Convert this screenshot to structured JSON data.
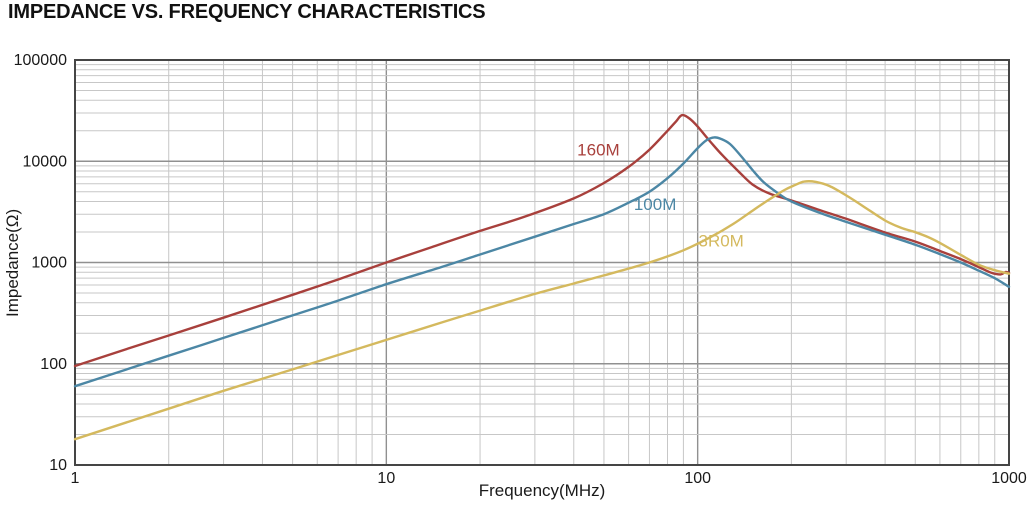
{
  "page": {
    "title": "IMPEDANCE VS. FREQUENCY CHARACTERISTICS"
  },
  "styles": {
    "background": "#ffffff",
    "text_color": "#1a1a1a",
    "grid_minor": "#c7c7c7",
    "grid_major": "#909090",
    "frame": "#454545"
  },
  "chart_data": {
    "type": "line",
    "title": "IMPEDANCE VS. FREQUENCY CHARACTERISTICS",
    "xlabel": "Frequency(MHz)",
    "ylabel": "Impedance(Ω)",
    "x_scale": "log",
    "y_scale": "log",
    "xlim": [
      1,
      1000
    ],
    "ylim": [
      10,
      100000
    ],
    "x_ticks": [
      "1",
      "10",
      "100",
      "1000"
    ],
    "y_ticks": [
      "10",
      "100",
      "1000",
      "10000",
      "100000"
    ],
    "grid": "log major and minor, full frame border",
    "legend_position": "inline curve labels",
    "series": [
      {
        "name": "160M",
        "color": "#A8403C",
        "label_at": [
          48,
          13000
        ],
        "peak": {
          "freq_mhz": 89,
          "impedance_ohm": 28500
        },
        "points": [
          [
            1,
            95
          ],
          [
            1.5,
            143
          ],
          [
            2,
            190
          ],
          [
            3,
            285
          ],
          [
            5,
            480
          ],
          [
            7,
            680
          ],
          [
            10,
            1000
          ],
          [
            14,
            1420
          ],
          [
            20,
            2050
          ],
          [
            28,
            2850
          ],
          [
            40,
            4300
          ],
          [
            50,
            6100
          ],
          [
            60,
            8800
          ],
          [
            70,
            13000
          ],
          [
            80,
            20000
          ],
          [
            85,
            24500
          ],
          [
            89,
            28500
          ],
          [
            94,
            26500
          ],
          [
            100,
            22000
          ],
          [
            110,
            15500
          ],
          [
            120,
            11500
          ],
          [
            135,
            8000
          ],
          [
            150,
            5900
          ],
          [
            170,
            4800
          ],
          [
            200,
            4100
          ],
          [
            250,
            3250
          ],
          [
            300,
            2700
          ],
          [
            400,
            1980
          ],
          [
            500,
            1610
          ],
          [
            600,
            1300
          ],
          [
            700,
            1080
          ],
          [
            800,
            900
          ],
          [
            880,
            790
          ],
          [
            940,
            763
          ],
          [
            975,
            805
          ],
          [
            1000,
            790
          ]
        ]
      },
      {
        "name": "100M",
        "color": "#4C87A5",
        "label_at": [
          73,
          3800
        ],
        "peak": {
          "freq_mhz": 113,
          "impedance_ohm": 17200
        },
        "points": [
          [
            1,
            60
          ],
          [
            2,
            120
          ],
          [
            3,
            180
          ],
          [
            5,
            300
          ],
          [
            7,
            420
          ],
          [
            10,
            610
          ],
          [
            15,
            900
          ],
          [
            20,
            1200
          ],
          [
            30,
            1800
          ],
          [
            40,
            2400
          ],
          [
            50,
            3000
          ],
          [
            60,
            3900
          ],
          [
            70,
            5000
          ],
          [
            80,
            6800
          ],
          [
            90,
            9500
          ],
          [
            100,
            13500
          ],
          [
            107,
            16200
          ],
          [
            113,
            17200
          ],
          [
            119,
            16600
          ],
          [
            127,
            14800
          ],
          [
            137,
            11500
          ],
          [
            150,
            8200
          ],
          [
            163,
            6200
          ],
          [
            180,
            4900
          ],
          [
            200,
            4000
          ],
          [
            250,
            3050
          ],
          [
            300,
            2520
          ],
          [
            400,
            1880
          ],
          [
            500,
            1500
          ],
          [
            600,
            1210
          ],
          [
            700,
            1000
          ],
          [
            800,
            830
          ],
          [
            900,
            700
          ],
          [
            1000,
            575
          ]
        ]
      },
      {
        "name": "3R0M",
        "color": "#D4B95E",
        "label_at": [
          119,
          1650
        ],
        "peak": {
          "freq_mhz": 220,
          "impedance_ohm": 6300
        },
        "points": [
          [
            1,
            18
          ],
          [
            2,
            36
          ],
          [
            3,
            54
          ],
          [
            5,
            88
          ],
          [
            7,
            122
          ],
          [
            10,
            172
          ],
          [
            15,
            255
          ],
          [
            20,
            335
          ],
          [
            30,
            490
          ],
          [
            40,
            620
          ],
          [
            50,
            745
          ],
          [
            70,
            1000
          ],
          [
            90,
            1320
          ],
          [
            110,
            1780
          ],
          [
            130,
            2400
          ],
          [
            150,
            3250
          ],
          [
            170,
            4200
          ],
          [
            190,
            5200
          ],
          [
            205,
            5800
          ],
          [
            220,
            6300
          ],
          [
            240,
            6250
          ],
          [
            265,
            5700
          ],
          [
            300,
            4600
          ],
          [
            340,
            3600
          ],
          [
            400,
            2600
          ],
          [
            450,
            2200
          ],
          [
            500,
            1990
          ],
          [
            550,
            1780
          ],
          [
            600,
            1560
          ],
          [
            700,
            1190
          ],
          [
            800,
            950
          ],
          [
            900,
            840
          ],
          [
            1000,
            775
          ]
        ]
      }
    ]
  }
}
